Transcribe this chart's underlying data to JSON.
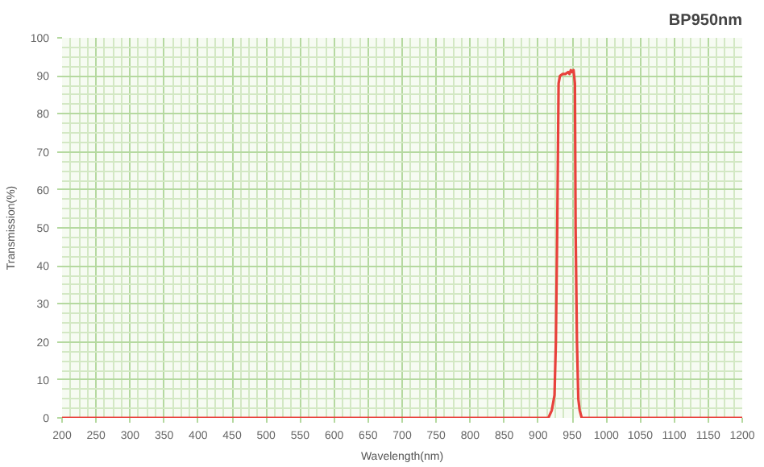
{
  "chart_data": {
    "type": "line",
    "title": "BP950nm",
    "xlabel": "Wavelength(nm)",
    "ylabel": "Transmission(%)",
    "x": [
      200,
      400,
      600,
      800,
      900,
      915,
      920,
      924,
      926,
      928,
      930,
      932,
      936,
      940,
      944,
      946,
      948,
      950,
      952,
      954,
      955,
      957,
      959,
      961,
      964,
      970,
      1000,
      1100,
      1200
    ],
    "series": [
      {
        "color": "#e8413c",
        "values": [
          0,
          0,
          0,
          0,
          0,
          0,
          2,
          6,
          20,
          50,
          88,
          90,
          90.5,
          90.5,
          91,
          90.5,
          91.5,
          91,
          91.5,
          88,
          50,
          20,
          5,
          2,
          0,
          0,
          0,
          0,
          0
        ]
      }
    ],
    "xlim": [
      200,
      1200
    ],
    "ylim": [
      0,
      100
    ],
    "xticks": [
      200,
      250,
      300,
      350,
      400,
      450,
      500,
      550,
      600,
      650,
      700,
      750,
      800,
      850,
      900,
      950,
      1000,
      1050,
      1100,
      1150,
      1200
    ],
    "yticks": [
      0,
      10,
      20,
      30,
      40,
      50,
      60,
      70,
      80,
      90,
      100
    ],
    "grid": true,
    "marker": "none",
    "line_style": "solid"
  }
}
